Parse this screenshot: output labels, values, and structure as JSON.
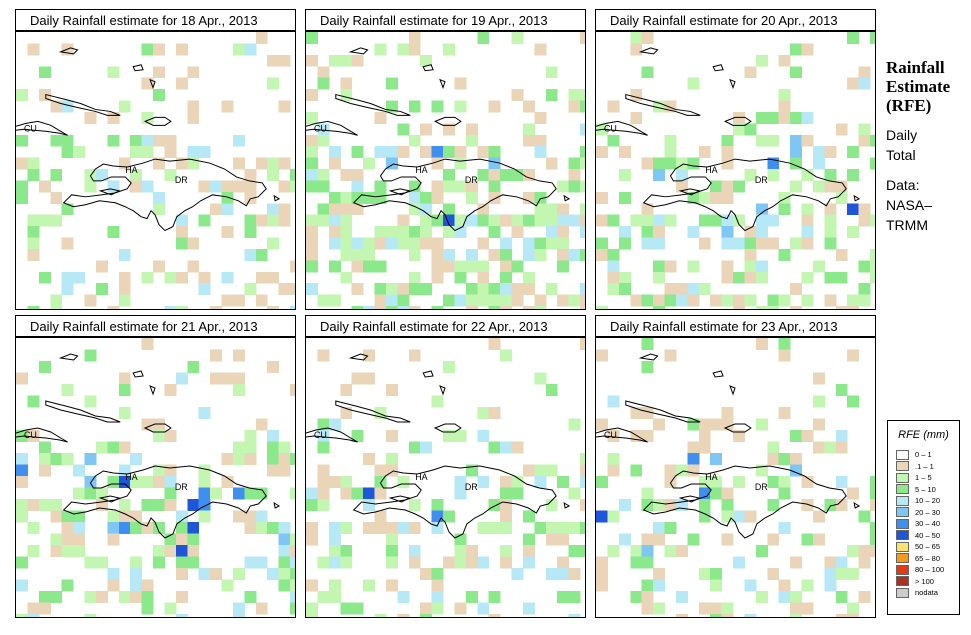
{
  "panels": [
    {
      "title": "Daily Rainfall estimate for  18 Apr., 2013",
      "seed": 18,
      "wet": 0.4,
      "blue": 0.1,
      "south": 0.25
    },
    {
      "title": "Daily Rainfall estimate for  19 Apr., 2013",
      "seed": 19,
      "wet": 0.75,
      "blue": 0.25,
      "south": 0.85
    },
    {
      "title": "Daily Rainfall estimate for  20 Apr., 2013",
      "seed": 20,
      "wet": 0.6,
      "blue": 0.35,
      "south": 0.7
    },
    {
      "title": "Daily Rainfall estimate for  21 Apr., 2013",
      "seed": 21,
      "wet": 0.55,
      "blue": 0.3,
      "south": 0.65
    },
    {
      "title": "Daily Rainfall estimate for  22 Apr., 2013",
      "seed": 22,
      "wet": 0.45,
      "blue": 0.12,
      "south": 0.55
    },
    {
      "title": "Daily Rainfall estimate for  23 Apr., 2013",
      "seed": 23,
      "wet": 0.45,
      "blue": 0.3,
      "south": 0.3
    }
  ],
  "map_labels": {
    "cuba": "CU",
    "haiti": "HA",
    "dominican_republic": "DR"
  },
  "side": {
    "title_line1": "Rainfall",
    "title_line2": "Estimate",
    "title_line3": "(RFE)",
    "period_line1": "Daily",
    "period_line2": "Total",
    "source_line1": "Data:",
    "source_line2": "NASA–",
    "source_line3": "TRMM"
  },
  "legend": {
    "title": "RFE (mm)",
    "items": [
      {
        "label": "0 – 1",
        "color": "#ffffff"
      },
      {
        "label": ".1 – 1",
        "color": "#ead5b8"
      },
      {
        "label": "1 – 5",
        "color": "#c3f6b0"
      },
      {
        "label": "5 – 10",
        "color": "#8be88b"
      },
      {
        "label": "10 – 20",
        "color": "#b6e8f6"
      },
      {
        "label": "20 – 30",
        "color": "#7fc6f3"
      },
      {
        "label": "30 – 40",
        "color": "#3f8ff0"
      },
      {
        "label": "40 – 50",
        "color": "#1f55d8"
      },
      {
        "label": "50 – 65",
        "color": "#fae36d"
      },
      {
        "label": "65 – 80",
        "color": "#f59a1a"
      },
      {
        "label": "80 – 100",
        "color": "#e43a12"
      },
      {
        "label": "> 100",
        "color": "#a83222"
      },
      {
        "label": "nodata",
        "color": "#cccccc"
      }
    ]
  }
}
